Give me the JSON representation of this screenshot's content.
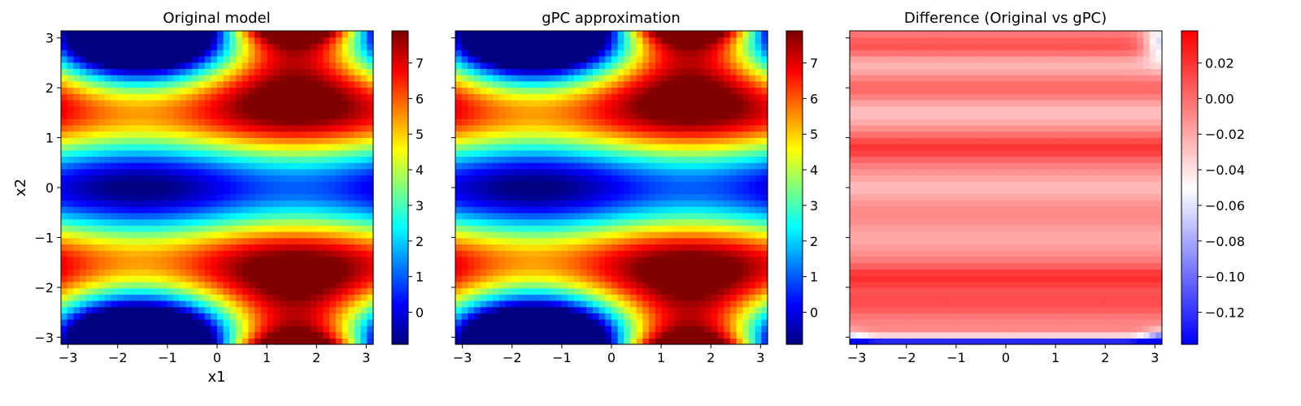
{
  "chart_data": [
    {
      "type": "heatmap",
      "title": "Original model",
      "xlabel": "x1",
      "ylabel": "x2",
      "xlim": [
        -3.1416,
        3.1416
      ],
      "ylim": [
        -3.1416,
        3.1416
      ],
      "xticks": [
        -3,
        -2,
        -1,
        0,
        1,
        2,
        3
      ],
      "yticks": [
        -3,
        -2,
        -1,
        0,
        1,
        2,
        3
      ],
      "grid_size": 50,
      "function": "sin(x1) + 7*sin(x2)^2 + 0.1*x2^4*sin(x1)",
      "colormap": "jet",
      "clim": [
        -0.9,
        7.9
      ],
      "colorbar_ticks": [
        0,
        1,
        2,
        3,
        4,
        5,
        6,
        7
      ]
    },
    {
      "type": "heatmap",
      "title": "gPC approximation",
      "xlabel": "",
      "ylabel": "",
      "xlim": [
        -3.1416,
        3.1416
      ],
      "ylim": [
        -3.1416,
        3.1416
      ],
      "xticks": [
        -3,
        -2,
        -1,
        0,
        1,
        2,
        3
      ],
      "yticks": [],
      "grid_size": 50,
      "function": "sin(x1) + 7*sin(x2)^2 + 0.1*x2^4*sin(x1)",
      "colormap": "jet",
      "clim": [
        -0.9,
        7.9
      ],
      "colorbar_ticks": [
        0,
        1,
        2,
        3,
        4,
        5,
        6,
        7
      ]
    },
    {
      "type": "heatmap",
      "title": "Difference (Original vs gPC)",
      "xlabel": "",
      "ylabel": "",
      "xlim": [
        -3.1416,
        3.1416
      ],
      "ylim": [
        -3.1416,
        3.1416
      ],
      "xticks": [
        -3,
        -2,
        -1,
        0,
        1,
        2,
        3
      ],
      "yticks": [],
      "grid_size": 50,
      "colormap": "bwr",
      "clim": [
        -0.138,
        0.038
      ],
      "colorbar_ticks": [
        0.02,
        0.0,
        -0.02,
        -0.04,
        -0.06,
        -0.08,
        -0.1,
        -0.12
      ],
      "colorbar_tick_labels": [
        "0.02",
        "0.00",
        "−0.02",
        "−0.04",
        "−0.06",
        "−0.08",
        "−0.10",
        "−0.12"
      ],
      "difference_features": {
        "positive_bands_x2": [
          2.8,
          2.0,
          0.8,
          -1.8,
          -2.3
        ],
        "negative_bands_x2": [
          -3.1,
          2.5,
          1.5,
          0.0,
          -1.0
        ],
        "edge_negative_x2": [
          -3.1,
          3.1
        ],
        "min": -0.13,
        "max": 0.035
      }
    }
  ]
}
